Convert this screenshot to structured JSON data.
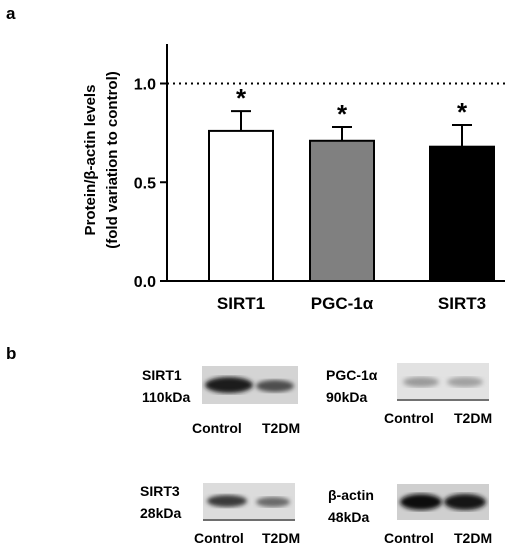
{
  "panel_a_label": "a",
  "panel_b_label": "b",
  "chart_data": {
    "type": "bar",
    "categories": [
      "SIRT1",
      "PGC-1α",
      "SIRT3"
    ],
    "values": [
      0.76,
      0.71,
      0.68
    ],
    "errors": [
      0.1,
      0.07,
      0.11
    ],
    "significance": [
      "*",
      "*",
      "*"
    ],
    "bar_colors": [
      "#ffffff",
      "#808080",
      "#000000"
    ],
    "ylabel": "Protein/β-actin levels",
    "ylabel2": "(fold variation to control)",
    "ylim": [
      0,
      1.2
    ],
    "yticks": [
      0.0,
      0.5,
      1.0
    ],
    "ytick_labels": [
      "0.0",
      "0.5",
      "1.0"
    ],
    "reference_line": 1.0,
    "grid": false
  },
  "blots": {
    "sirt1": {
      "name": "SIRT1",
      "size": "110kDa"
    },
    "pgc": {
      "name": "PGC-1α",
      "size": "90kDa"
    },
    "sirt3": {
      "name": "SIRT3",
      "size": "28kDa"
    },
    "bactin": {
      "name": "β-actin",
      "size": "48kDa"
    },
    "lane_control": "Control",
    "lane_t2dm": "T2DM"
  }
}
